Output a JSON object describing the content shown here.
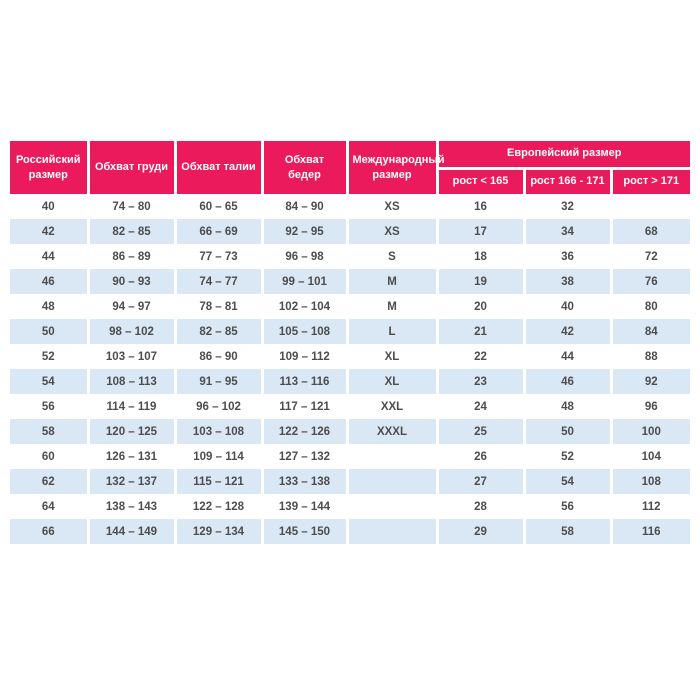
{
  "page": {
    "background": "#ffffff"
  },
  "colors": {
    "header_bg": "#ea1a5c",
    "header_text": "#ffffff",
    "row_bg": "#ffffff",
    "row_alt_bg": "#dae7f4",
    "body_text": "#4d4d4d",
    "separator": "#ffffff"
  },
  "table": {
    "headers": {
      "russian_size": "Российский размер",
      "chest": "Обхват груди",
      "waist": "Обхват талии",
      "hips": "Обхват бедер",
      "international_size": "Международный размер",
      "european_size": "Европейский размер",
      "height_lt_165": "рост < 165",
      "height_166_171": "рост 166 - 171",
      "height_gt_171": "рост > 171"
    },
    "rows": [
      [
        "40",
        "74 – 80",
        "60 – 65",
        "84 – 90",
        "XS",
        "16",
        "32",
        ""
      ],
      [
        "42",
        "82 – 85",
        "66 – 69",
        "92 – 95",
        "XS",
        "17",
        "34",
        "68"
      ],
      [
        "44",
        "86 – 89",
        "77 – 73",
        "96 – 98",
        "S",
        "18",
        "36",
        "72"
      ],
      [
        "46",
        "90 – 93",
        "74 – 77",
        "99 – 101",
        "M",
        "19",
        "38",
        "76"
      ],
      [
        "48",
        "94 – 97",
        "78 – 81",
        "102 – 104",
        "M",
        "20",
        "40",
        "80"
      ],
      [
        "50",
        "98 – 102",
        "82 – 85",
        "105 – 108",
        "L",
        "21",
        "42",
        "84"
      ],
      [
        "52",
        "103 – 107",
        "86 – 90",
        "109 – 112",
        "XL",
        "22",
        "44",
        "88"
      ],
      [
        "54",
        "108 – 113",
        "91 – 95",
        "113 – 116",
        "XL",
        "23",
        "46",
        "92"
      ],
      [
        "56",
        "114 – 119",
        "96 – 102",
        "117 – 121",
        "XXL",
        "24",
        "48",
        "96"
      ],
      [
        "58",
        "120 – 125",
        "103 – 108",
        "122 – 126",
        "XXXL",
        "25",
        "50",
        "100"
      ],
      [
        "60",
        "126 – 131",
        "109 – 114",
        "127 – 132",
        "",
        "26",
        "52",
        "104"
      ],
      [
        "62",
        "132 – 137",
        "115 – 121",
        "133 – 138",
        "",
        "27",
        "54",
        "108"
      ],
      [
        "64",
        "138 – 143",
        "122 – 128",
        "139 – 144",
        "",
        "28",
        "56",
        "112"
      ],
      [
        "66",
        "144 – 149",
        "129 – 134",
        "145 – 150",
        "",
        "29",
        "58",
        "116"
      ]
    ]
  }
}
